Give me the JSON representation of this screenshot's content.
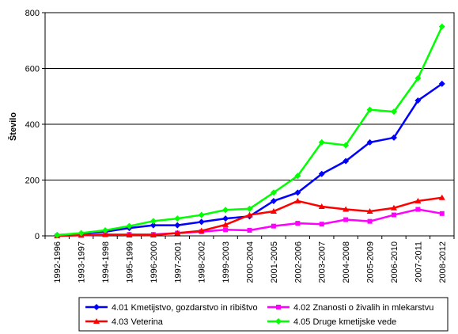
{
  "chart_data": {
    "type": "line",
    "title": "",
    "xlabel": "",
    "ylabel": "Število",
    "ylim": [
      0,
      800
    ],
    "yticks": [
      0,
      200,
      400,
      600,
      800
    ],
    "grid": true,
    "legend_position": "bottom",
    "categories": [
      "1992-1996",
      "1993-1997",
      "1994-1998",
      "1995-1999",
      "1996-2000",
      "1997-2001",
      "1998-2002",
      "1999-2003",
      "2000-2004",
      "2001-2005",
      "2002-2006",
      "2003-2007",
      "2004-2008",
      "2005-2009",
      "2006-2010",
      "2007-2011",
      "2008-2012"
    ],
    "series": [
      {
        "name": "4.01 Kmetijstvo, gozdarstvo in ribištvo",
        "color": "#0000ff",
        "marker": "diamond",
        "values": [
          3,
          8,
          15,
          28,
          38,
          38,
          50,
          62,
          70,
          125,
          155,
          222,
          268,
          335,
          352,
          485,
          545
        ]
      },
      {
        "name": "4.02 Znanosti o živalih in mlekarstvu",
        "color": "#ff00ff",
        "marker": "square",
        "values": [
          0,
          2,
          4,
          5,
          5,
          10,
          15,
          22,
          20,
          35,
          45,
          42,
          58,
          52,
          75,
          95,
          80
        ]
      },
      {
        "name": "4.03 Veterina",
        "color": "#ff0000",
        "marker": "triangle",
        "values": [
          0,
          2,
          5,
          3,
          3,
          10,
          18,
          40,
          75,
          88,
          125,
          105,
          95,
          88,
          100,
          125,
          137
        ]
      },
      {
        "name": "4.05 Druge kmetijske vede",
        "color": "#00ff00",
        "marker": "diamond",
        "values": [
          3,
          10,
          20,
          35,
          53,
          62,
          75,
          93,
          97,
          155,
          215,
          335,
          325,
          452,
          445,
          565,
          750
        ]
      }
    ]
  }
}
